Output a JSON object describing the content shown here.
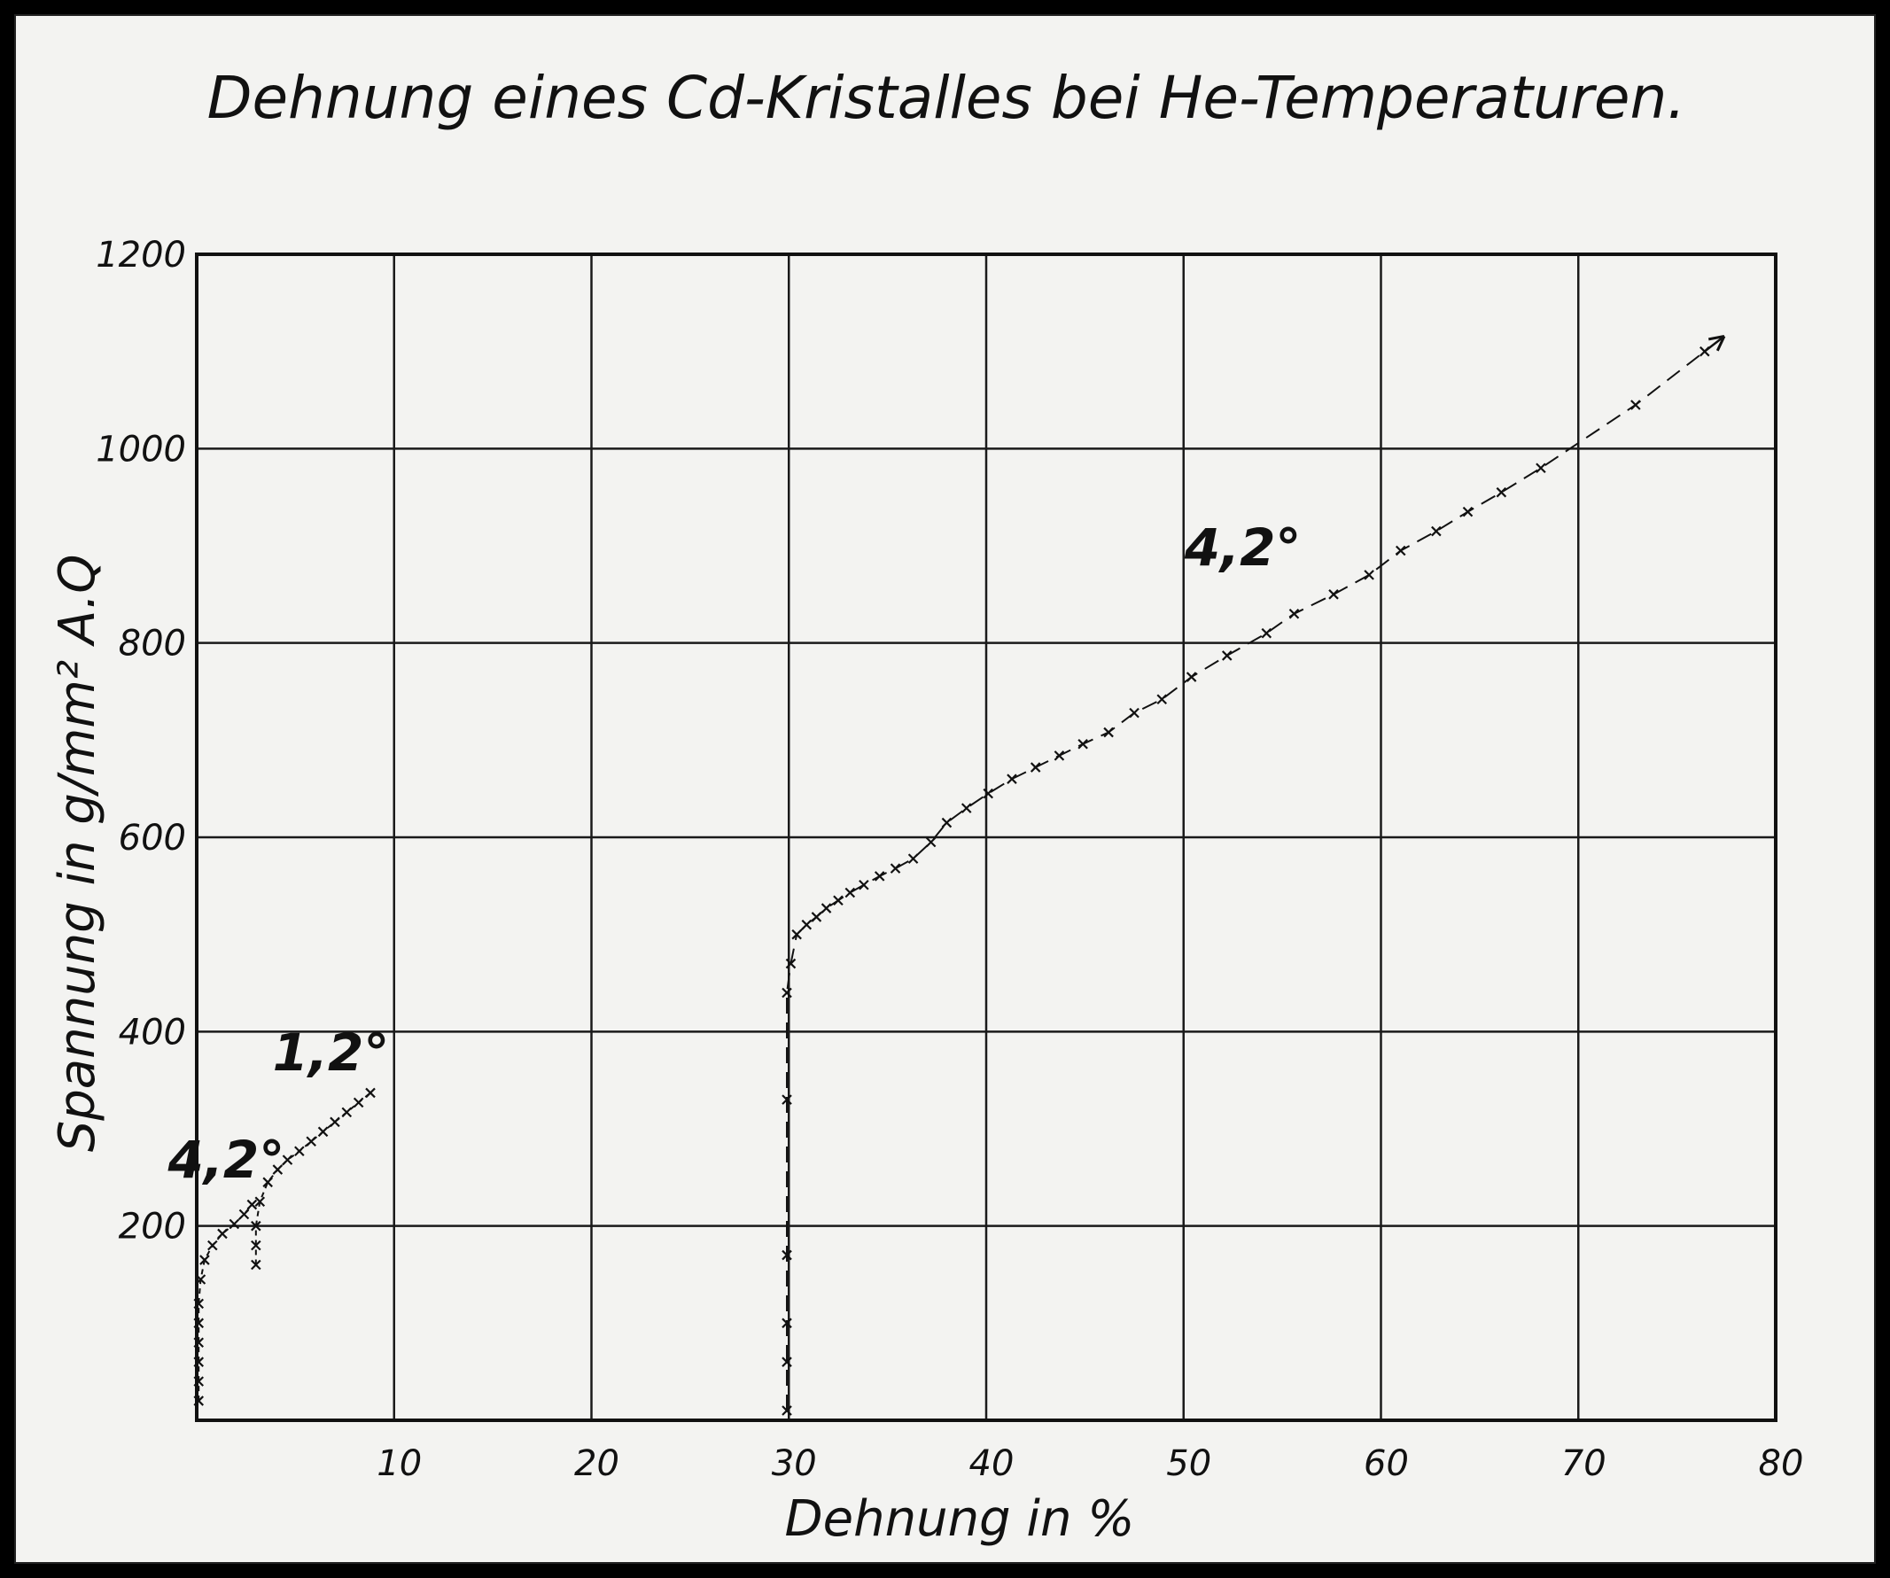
{
  "chart_data": {
    "type": "scatter",
    "title": "Dehnung eines Cd-Kristalles bei He-Temperaturen.",
    "xlabel": "Dehnung in %",
    "ylabel": "Spannung in g/mm² A.Q",
    "xlim": [
      0,
      80
    ],
    "ylim": [
      0,
      1200
    ],
    "xticks": [
      10,
      20,
      30,
      40,
      50,
      60,
      70,
      80
    ],
    "yticks": [
      200,
      400,
      600,
      800,
      1000,
      1200
    ],
    "grid": true,
    "series": [
      {
        "name": "4,2°",
        "marker": "x",
        "x": [
          0.1,
          0.1,
          0.1,
          0.1,
          0.1,
          0.1,
          0.2,
          0.4,
          0.8,
          1.3,
          1.9,
          2.4,
          2.8
        ],
        "y": [
          20,
          40,
          60,
          80,
          100,
          120,
          145,
          165,
          180,
          192,
          202,
          212,
          222
        ]
      },
      {
        "name": "1,2°",
        "marker": "x",
        "x": [
          3.0,
          3.0,
          3.0,
          3.2,
          3.6,
          4.1,
          4.6,
          5.2,
          5.8,
          6.4,
          7.0,
          7.6,
          8.2,
          8.8
        ],
        "y": [
          160,
          180,
          200,
          225,
          245,
          258,
          268,
          277,
          287,
          297,
          307,
          317,
          327,
          337
        ]
      },
      {
        "name": "4,2°",
        "marker": "x",
        "x": [
          29.9,
          29.9,
          29.9,
          29.9,
          29.9,
          29.9,
          30.1,
          30.4,
          30.9,
          31.4,
          31.9,
          32.5,
          33.1,
          33.8,
          34.6,
          35.4,
          36.3,
          37.2,
          38.0,
          39.0,
          40.1,
          41.3,
          42.5,
          43.7,
          44.9,
          46.2,
          47.5,
          48.9,
          50.4,
          52.2,
          54.2,
          55.6,
          57.6,
          59.4,
          61.0,
          62.8,
          64.4,
          66.1,
          68.1,
          72.9,
          76.4
        ],
        "y": [
          10,
          60,
          100,
          170,
          330,
          440,
          470,
          500,
          510,
          518,
          527,
          535,
          543,
          551,
          560,
          568,
          578,
          595,
          615,
          630,
          645,
          660,
          672,
          684,
          696,
          708,
          728,
          742,
          765,
          787,
          810,
          830,
          850,
          870,
          895,
          915,
          935,
          955,
          980,
          1045,
          1100
        ]
      }
    ],
    "annotations": [
      {
        "text": "4,2°",
        "x": 1.5,
        "y": 250
      },
      {
        "text": "1,2°",
        "x": 6.8,
        "y": 360
      },
      {
        "text": "4,2°",
        "x": 53,
        "y": 880
      }
    ]
  }
}
